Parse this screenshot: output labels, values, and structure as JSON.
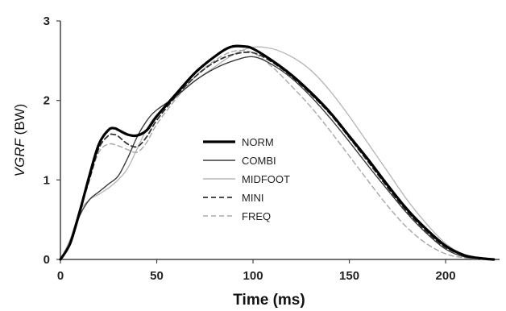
{
  "chart_data": {
    "type": "line",
    "xlabel": "Time (ms)",
    "ylabel_italic": "VGRF",
    "ylabel_rest": " (BW)",
    "xlim": [
      0,
      228
    ],
    "ylim": [
      0,
      3
    ],
    "xticks": [
      0,
      50,
      100,
      150,
      200
    ],
    "yticks": [
      0,
      1,
      2,
      3
    ],
    "grid": false,
    "legend_position": "center",
    "series": [
      {
        "name": "NORM",
        "color": "#000000",
        "width": 3.2,
        "dash": "",
        "x": [
          0,
          5,
          10,
          15,
          20,
          25,
          28,
          30,
          35,
          40,
          45,
          50,
          60,
          70,
          80,
          88,
          95,
          100,
          110,
          120,
          130,
          140,
          150,
          160,
          170,
          180,
          190,
          200,
          210,
          220,
          225
        ],
        "y": [
          0,
          0.2,
          0.6,
          1.05,
          1.45,
          1.63,
          1.65,
          1.63,
          1.57,
          1.56,
          1.63,
          1.8,
          2.08,
          2.35,
          2.55,
          2.67,
          2.68,
          2.65,
          2.5,
          2.32,
          2.1,
          1.85,
          1.55,
          1.25,
          0.93,
          0.63,
          0.38,
          0.17,
          0.05,
          0.01,
          0
        ]
      },
      {
        "name": "COMBI",
        "color": "#3c3c3c",
        "width": 1.4,
        "dash": "",
        "x": [
          0,
          5,
          10,
          15,
          20,
          25,
          30,
          35,
          40,
          45,
          50,
          60,
          70,
          80,
          90,
          100,
          110,
          120,
          130,
          140,
          150,
          160,
          170,
          180,
          190,
          200,
          210,
          220,
          225
        ],
        "y": [
          0,
          0.2,
          0.55,
          0.75,
          0.85,
          0.95,
          1.05,
          1.28,
          1.55,
          1.75,
          1.88,
          2.05,
          2.25,
          2.4,
          2.5,
          2.55,
          2.45,
          2.28,
          2.05,
          1.78,
          1.48,
          1.17,
          0.87,
          0.58,
          0.33,
          0.13,
          0.03,
          0.01,
          0
        ]
      },
      {
        "name": "MIDFOOT",
        "color": "#b8b8b8",
        "width": 1.4,
        "dash": "",
        "x": [
          0,
          5,
          10,
          15,
          20,
          25,
          30,
          35,
          40,
          45,
          50,
          60,
          70,
          80,
          90,
          100,
          110,
          120,
          130,
          140,
          150,
          160,
          170,
          180,
          190,
          200,
          210,
          220,
          225
        ],
        "y": [
          0,
          0.25,
          0.6,
          0.75,
          0.82,
          0.9,
          1.0,
          1.15,
          1.4,
          1.65,
          1.82,
          2.05,
          2.25,
          2.42,
          2.58,
          2.67,
          2.65,
          2.55,
          2.38,
          2.12,
          1.8,
          1.45,
          1.1,
          0.75,
          0.45,
          0.2,
          0.06,
          0.01,
          0
        ]
      },
      {
        "name": "MINI",
        "color": "#333333",
        "width": 1.8,
        "dash": "6,4",
        "x": [
          0,
          5,
          10,
          15,
          20,
          25,
          28,
          30,
          35,
          40,
          45,
          50,
          60,
          70,
          80,
          90,
          100,
          110,
          120,
          130,
          140,
          150,
          160,
          170,
          180,
          190,
          200,
          210,
          220,
          225
        ],
        "y": [
          0,
          0.2,
          0.6,
          1.0,
          1.4,
          1.56,
          1.57,
          1.55,
          1.45,
          1.42,
          1.55,
          1.75,
          2.05,
          2.3,
          2.48,
          2.58,
          2.6,
          2.48,
          2.3,
          2.08,
          1.83,
          1.53,
          1.22,
          0.9,
          0.6,
          0.35,
          0.15,
          0.05,
          0.01,
          0
        ]
      },
      {
        "name": "FREQ",
        "color": "#a8a8a8",
        "width": 1.4,
        "dash": "6,4",
        "x": [
          0,
          5,
          10,
          15,
          20,
          25,
          30,
          35,
          40,
          45,
          50,
          60,
          70,
          80,
          90,
          100,
          110,
          120,
          130,
          140,
          150,
          160,
          170,
          180,
          190,
          200,
          210,
          220
        ],
        "y": [
          0,
          0.2,
          0.6,
          1.0,
          1.35,
          1.45,
          1.43,
          1.38,
          1.35,
          1.48,
          1.7,
          2.02,
          2.3,
          2.5,
          2.62,
          2.6,
          2.42,
          2.18,
          1.92,
          1.62,
          1.3,
          0.98,
          0.67,
          0.4,
          0.2,
          0.07,
          0.02,
          0
        ]
      }
    ]
  }
}
